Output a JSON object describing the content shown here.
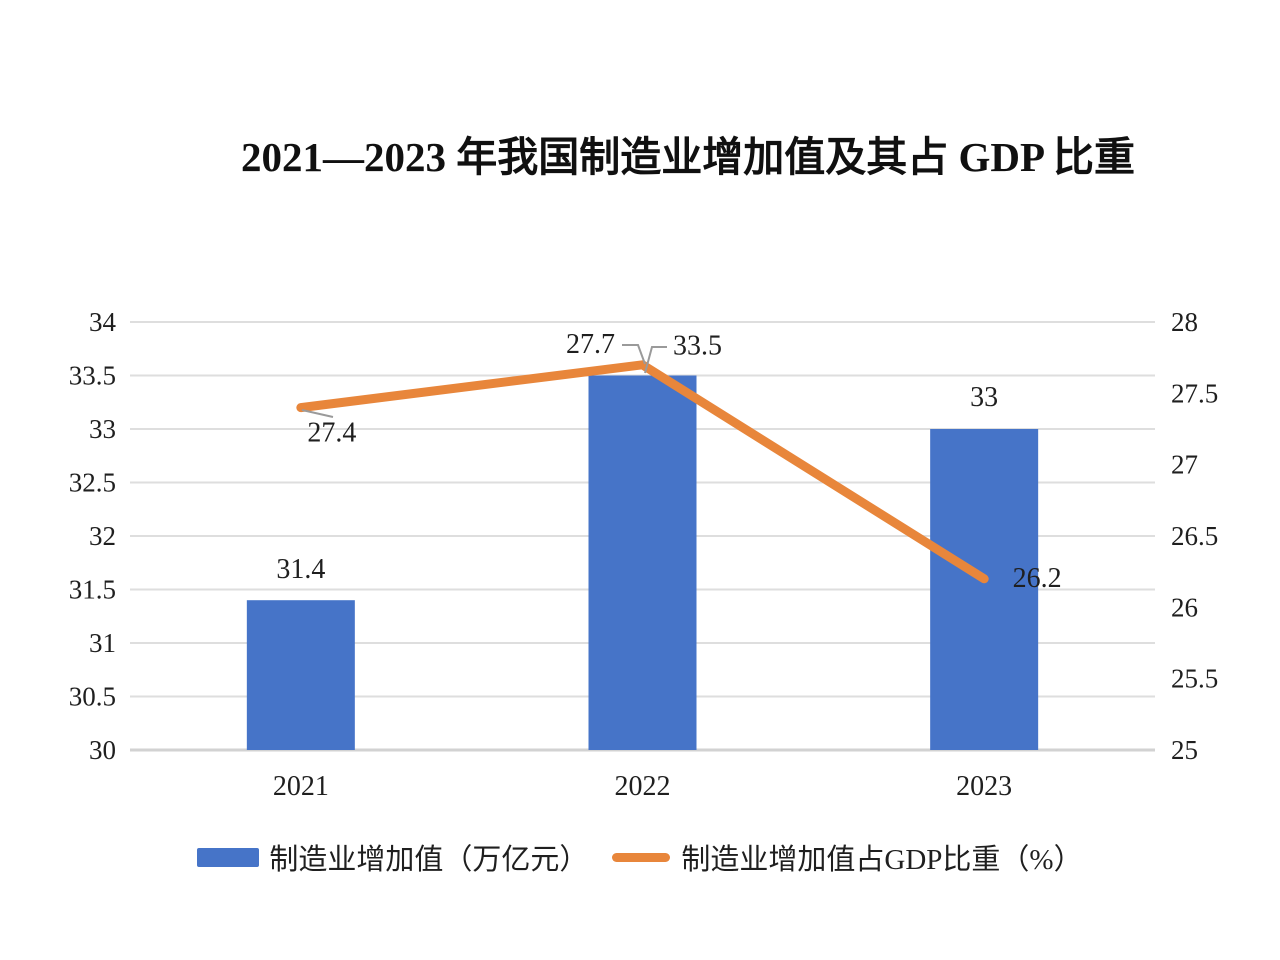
{
  "chart_data": {
    "type": "combo_bar_line",
    "title": "2021—2023 年我国制造业增加值及其占 GDP 比重",
    "categories": [
      "2021",
      "2022",
      "2023"
    ],
    "series": [
      {
        "name": "制造业增加值（万亿元）",
        "type": "bar",
        "axis": "left",
        "values": [
          31.4,
          33.5,
          33
        ],
        "data_labels": [
          "31.4",
          "33.5",
          "33"
        ],
        "color": "#4674c8"
      },
      {
        "name": "制造业增加值占GDP比重（%）",
        "type": "line",
        "axis": "right",
        "values": [
          27.4,
          27.7,
          26.2
        ],
        "data_labels": [
          "27.4",
          "27.7",
          "26.2"
        ],
        "color": "#e8863b"
      }
    ],
    "left_axis": {
      "range": [
        30,
        34
      ],
      "ticks": [
        "30",
        "30.5",
        "31",
        "31.5",
        "32",
        "32.5",
        "33",
        "33.5",
        "34"
      ]
    },
    "right_axis": {
      "range": [
        25,
        28
      ],
      "ticks": [
        "25",
        "25.5",
        "26",
        "26.5",
        "27",
        "27.5",
        "28"
      ]
    },
    "grid": "horizontal-only",
    "legend_position": "bottom",
    "colors": {
      "gridline": "#dedede",
      "axis_line": "#d2d2d2",
      "leader": "#9a9a9a",
      "text": "#1f1f1f",
      "title": "#101010",
      "background": "#ffffff"
    }
  }
}
